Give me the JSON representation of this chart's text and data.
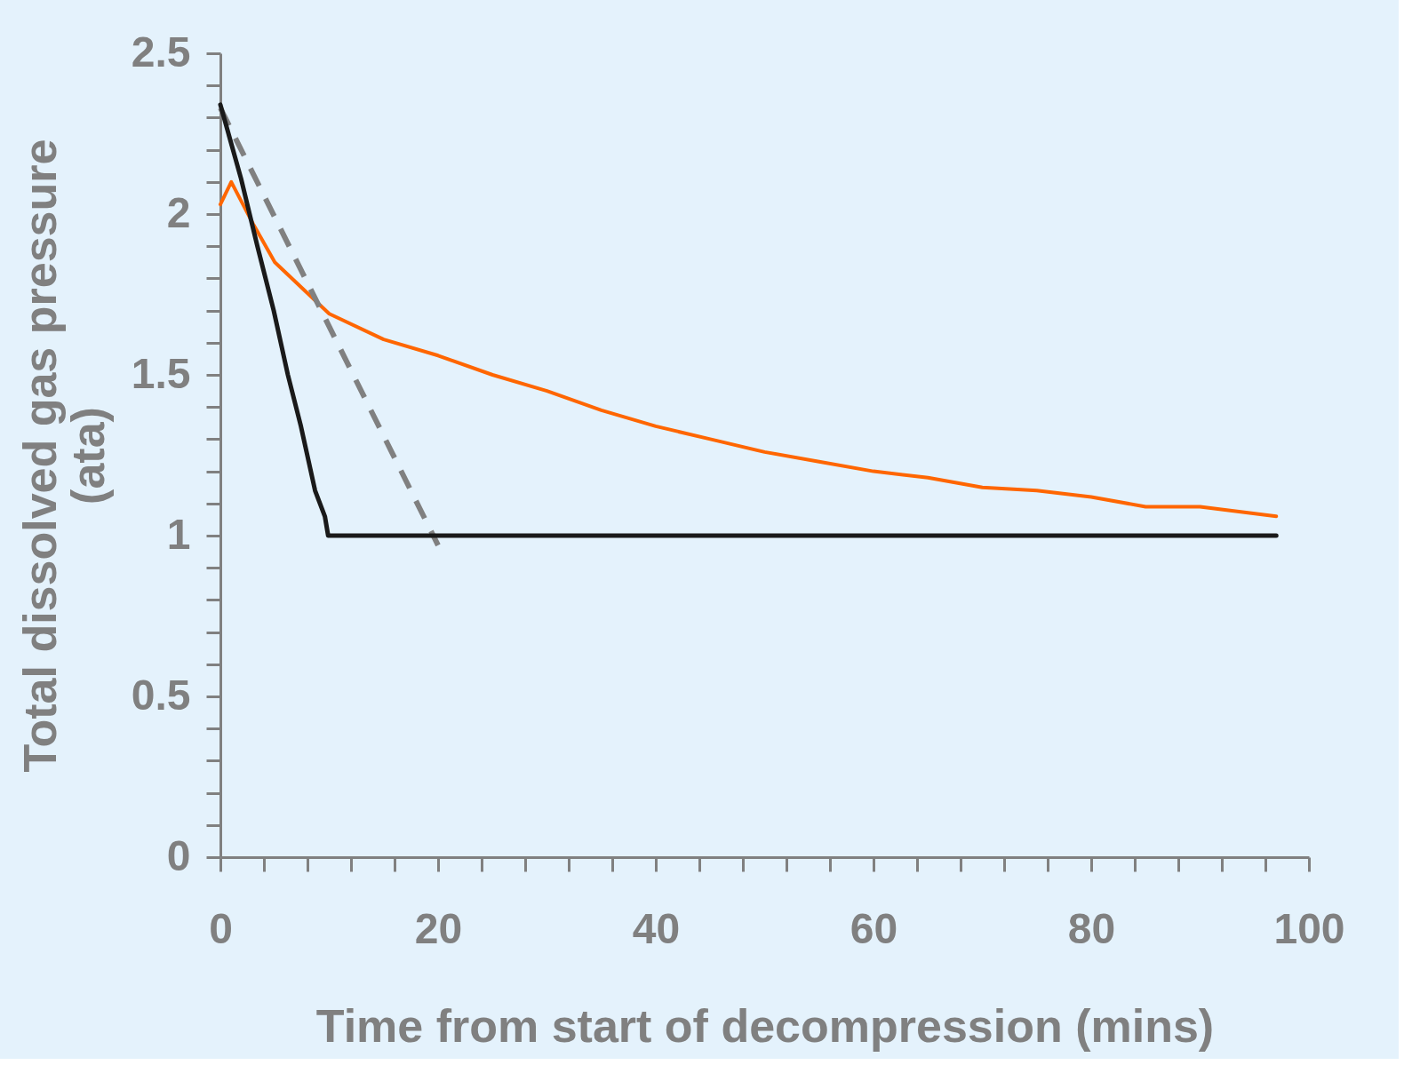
{
  "chart_data": {
    "type": "line",
    "xlabel": "Time from start of decompression (mins)",
    "ylabel": "Total dissolved gas pressure\n(ata)",
    "xlim": [
      0,
      100
    ],
    "ylim": [
      0,
      2.5
    ],
    "xticks": [
      0,
      {
        "value": 4,
        "label": null
      },
      {
        "value": 8,
        "label": null
      },
      {
        "value": 12,
        "label": null
      },
      {
        "value": 16,
        "label": null
      },
      20,
      {
        "value": 24,
        "label": null
      },
      {
        "value": 28,
        "label": null
      },
      {
        "value": 32,
        "label": null
      },
      {
        "value": 36,
        "label": null
      },
      40,
      {
        "value": 44,
        "label": null
      },
      {
        "value": 48,
        "label": null
      },
      {
        "value": 52,
        "label": null
      },
      {
        "value": 56,
        "label": null
      },
      60,
      {
        "value": 64,
        "label": null
      },
      {
        "value": 68,
        "label": null
      },
      {
        "value": 72,
        "label": null
      },
      {
        "value": 76,
        "label": null
      },
      80,
      {
        "value": 84,
        "label": null
      },
      {
        "value": 88,
        "label": null
      },
      {
        "value": 92,
        "label": null
      },
      {
        "value": 96,
        "label": null
      },
      100
    ],
    "yticks": [
      0,
      {
        "value": 0.1,
        "label": null
      },
      {
        "value": 0.2,
        "label": null
      },
      {
        "value": 0.3,
        "label": null
      },
      {
        "value": 0.4,
        "label": null
      },
      0.5,
      {
        "value": 0.6,
        "label": null
      },
      {
        "value": 0.7,
        "label": null
      },
      {
        "value": 0.8,
        "label": null
      },
      {
        "value": 0.9,
        "label": null
      },
      1,
      {
        "value": 1.1,
        "label": null
      },
      {
        "value": 1.2,
        "label": null
      },
      {
        "value": 1.3,
        "label": null
      },
      {
        "value": 1.4,
        "label": null
      },
      1.5,
      {
        "value": 1.6,
        "label": null
      },
      {
        "value": 1.7,
        "label": null
      },
      {
        "value": 1.8,
        "label": null
      },
      {
        "value": 1.9,
        "label": null
      },
      2,
      {
        "value": 2.1,
        "label": null
      },
      {
        "value": 2.2,
        "label": null
      },
      {
        "value": 2.3,
        "label": null
      },
      {
        "value": 2.4,
        "label": null
      },
      2.5
    ],
    "grid": false,
    "marker": "none",
    "series": [
      {
        "color": "#ff6600",
        "line_style": "solid",
        "x": [
          0,
          1,
          3,
          5,
          7.5,
          10,
          15,
          20,
          25,
          30,
          35,
          40,
          45,
          50,
          55,
          60,
          65,
          70,
          75,
          80,
          85,
          90,
          97
        ],
        "values": [
          2.03,
          2.1,
          1.97,
          1.85,
          1.77,
          1.69,
          1.61,
          1.56,
          1.5,
          1.45,
          1.39,
          1.34,
          1.3,
          1.26,
          1.23,
          1.2,
          1.18,
          1.15,
          1.14,
          1.12,
          1.09,
          1.09,
          1.06
        ]
      },
      {
        "color": "#808080",
        "line_style": "dashed",
        "x": [
          0,
          20
        ],
        "values": [
          2.33,
          0.97
        ]
      },
      {
        "color": "#1a1a1a",
        "line_style": "solid",
        "x": [
          0,
          1.9,
          3.4,
          4.9,
          6.2,
          7.4,
          8.7,
          9.6,
          9.9,
          97
        ],
        "values": [
          2.34,
          2.11,
          1.9,
          1.7,
          1.5,
          1.34,
          1.14,
          1.06,
          1.0,
          1.0
        ]
      }
    ]
  }
}
